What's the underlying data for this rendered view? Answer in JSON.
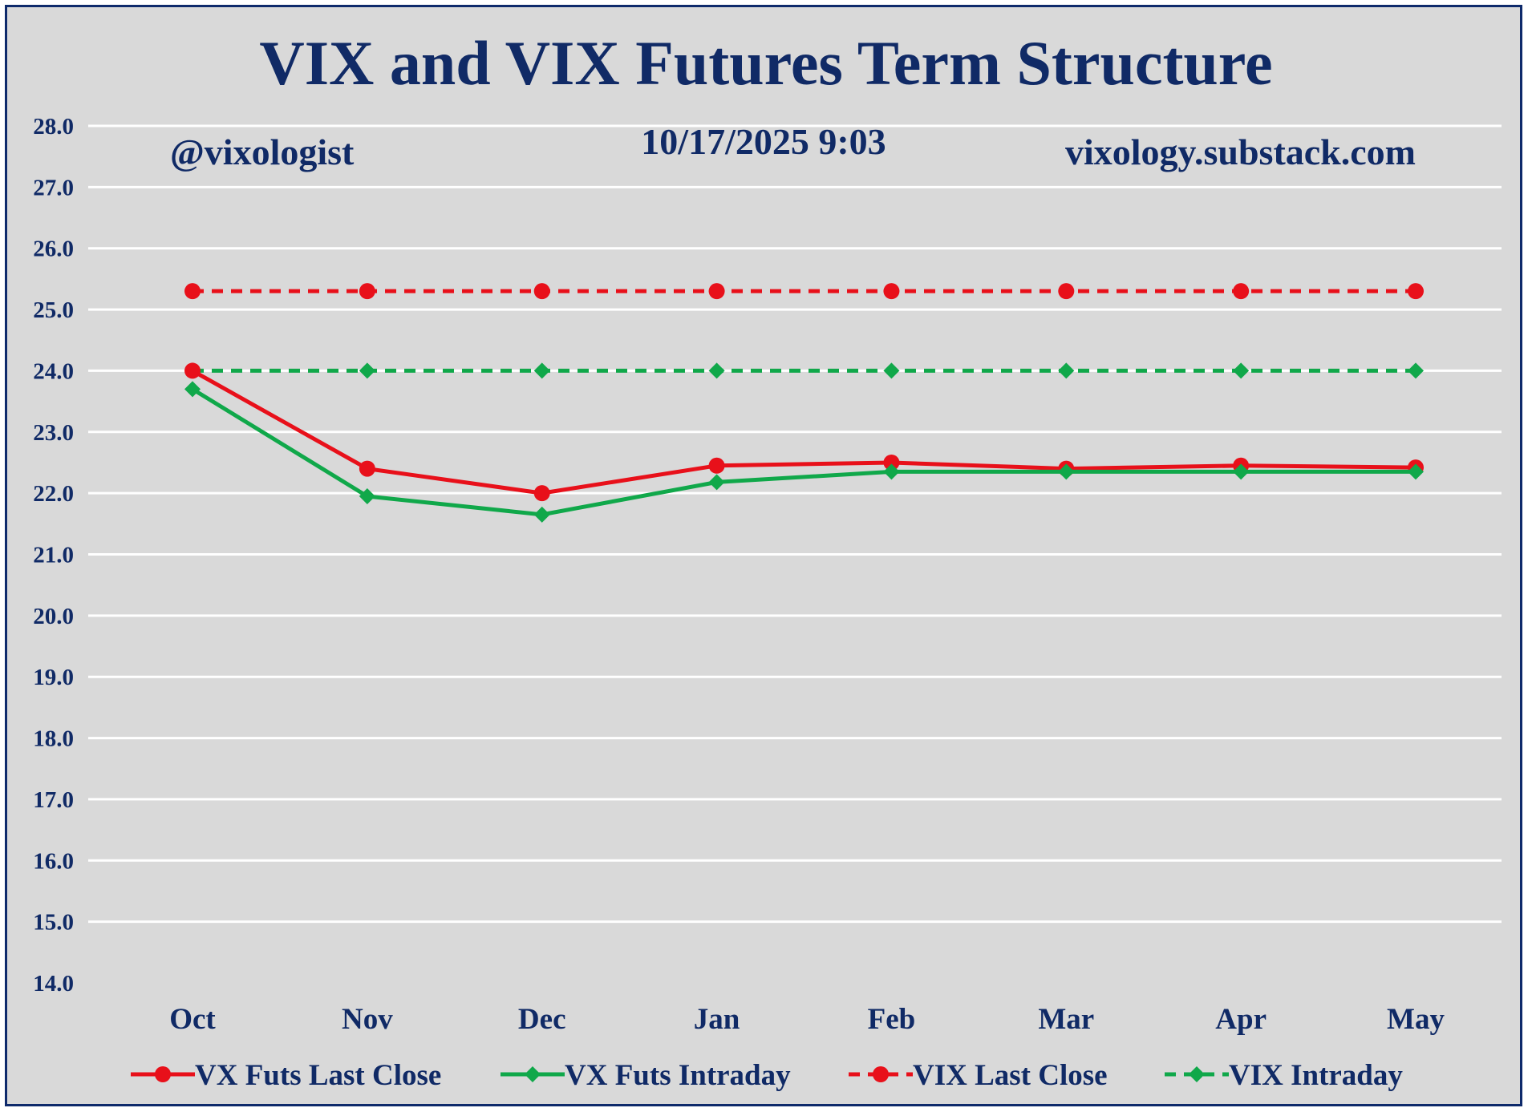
{
  "chart_data": {
    "type": "line",
    "title": "VIX and VIX Futures Term Structure",
    "annotations": {
      "left": "@vixologist",
      "center": "10/17/2025 9:03",
      "right": "vixology.substack.com"
    },
    "categories": [
      "Oct",
      "Nov",
      "Dec",
      "Jan",
      "Feb",
      "Mar",
      "Apr",
      "May"
    ],
    "ylim": [
      14.0,
      28.0
    ],
    "yticks": [
      "14.0",
      "15.0",
      "16.0",
      "17.0",
      "18.0",
      "19.0",
      "20.0",
      "21.0",
      "22.0",
      "23.0",
      "24.0",
      "25.0",
      "26.0",
      "27.0",
      "28.0"
    ],
    "grid": true,
    "legend_position": "bottom",
    "series": [
      {
        "name": "VX Futs Last Close",
        "color": "#e8101a",
        "dash": false,
        "marker": "circle",
        "values": [
          24.0,
          22.4,
          22.0,
          22.45,
          22.5,
          22.4,
          22.45,
          22.42
        ]
      },
      {
        "name": "VX Futs Intraday",
        "color": "#10a84a",
        "dash": false,
        "marker": "diamond",
        "values": [
          23.7,
          21.95,
          21.65,
          22.18,
          22.35,
          22.35,
          22.35,
          22.35
        ]
      },
      {
        "name": "VIX Last Close",
        "color": "#e8101a",
        "dash": true,
        "marker": "circle",
        "values": [
          25.3,
          25.3,
          25.3,
          25.3,
          25.3,
          25.3,
          25.3,
          25.3
        ]
      },
      {
        "name": "VIX Intraday",
        "color": "#10a84a",
        "dash": true,
        "marker": "diamond",
        "values": [
          24.0,
          24.0,
          24.0,
          24.0,
          24.0,
          24.0,
          24.0,
          24.0
        ]
      }
    ]
  }
}
